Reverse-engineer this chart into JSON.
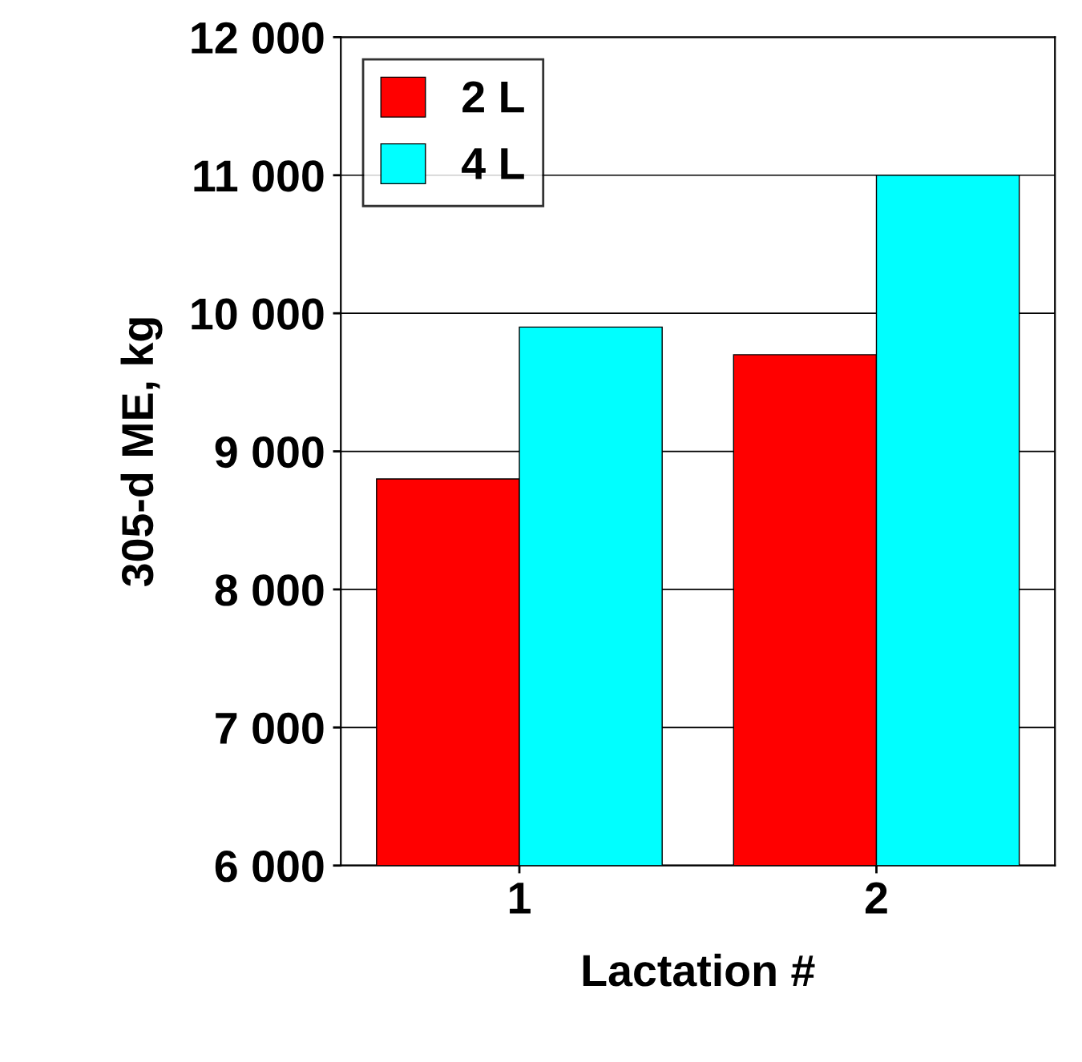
{
  "chart_data": {
    "type": "bar",
    "xlabel": "Lactation #",
    "ylabel": "305-d ME, kg",
    "categories": [
      "1",
      "2"
    ],
    "series": [
      {
        "name": "2 L",
        "color": "#ff0000",
        "values": [
          8800,
          9700
        ]
      },
      {
        "name": "4 L",
        "color": "#00ffff",
        "values": [
          9900,
          11000
        ]
      }
    ],
    "ylim": [
      6000,
      12000
    ],
    "yticks": [
      {
        "value": 6000,
        "label": "6 000"
      },
      {
        "value": 7000,
        "label": "7 000"
      },
      {
        "value": 8000,
        "label": "8 000"
      },
      {
        "value": 9000,
        "label": "9 000"
      },
      {
        "value": 10000,
        "label": "10 000"
      },
      {
        "value": 11000,
        "label": "11 000"
      },
      {
        "value": 12000,
        "label": "12 000"
      }
    ],
    "grid": "y",
    "legend": "top left"
  }
}
